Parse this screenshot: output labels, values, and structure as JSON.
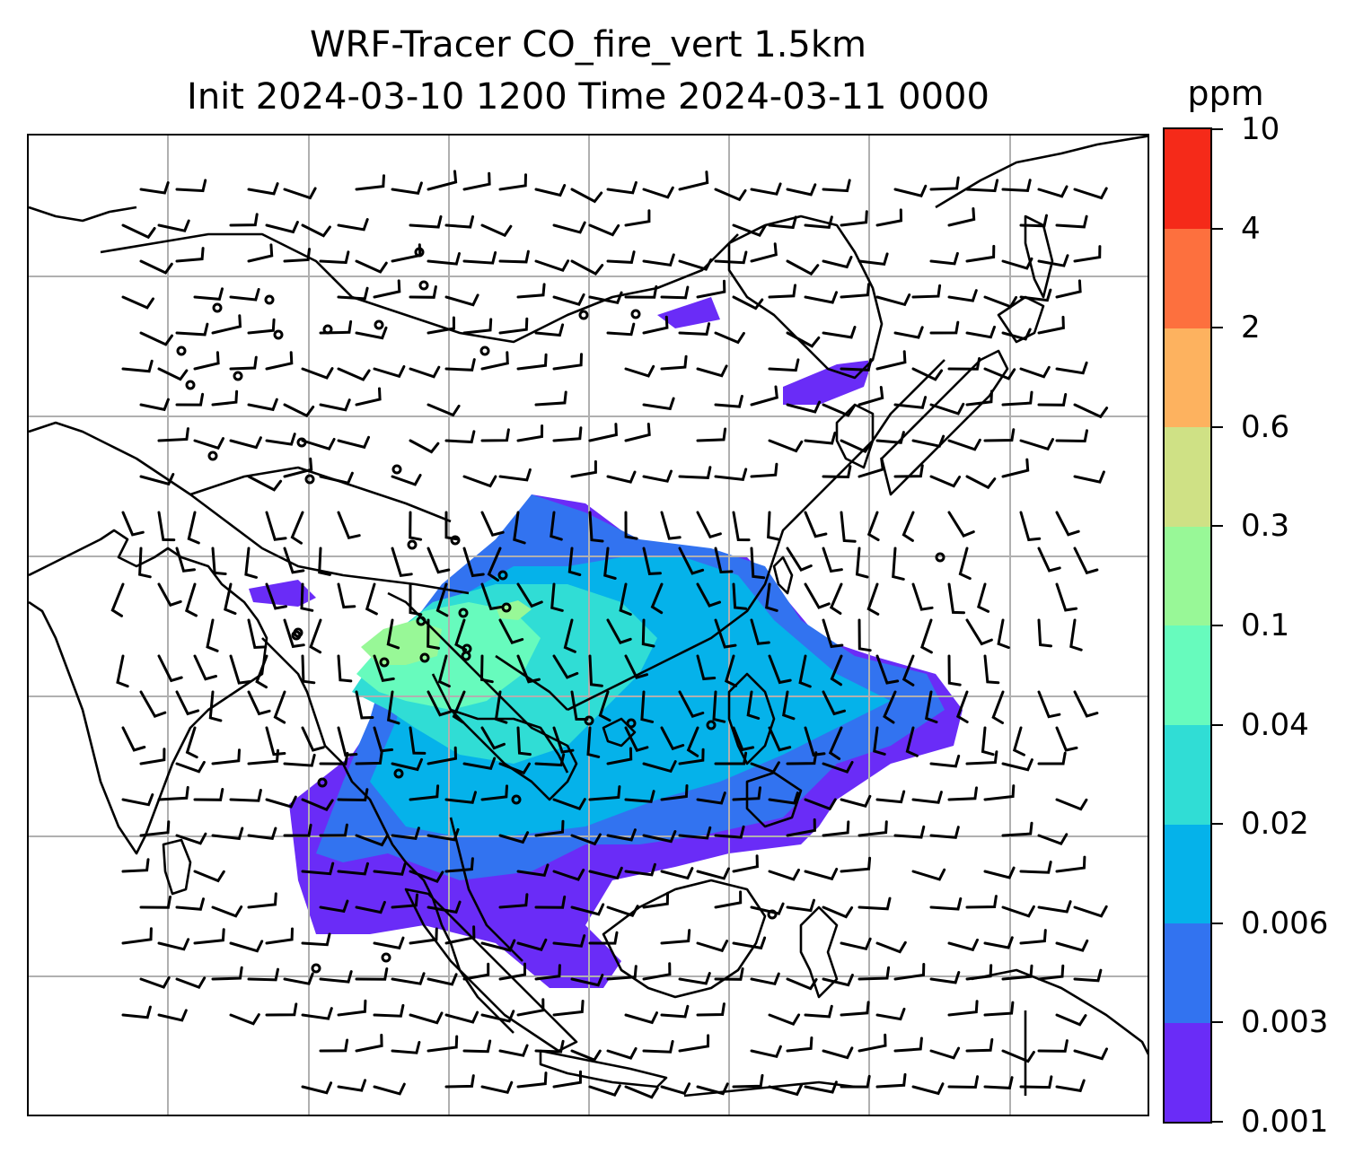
{
  "title": {
    "line1": "WRF-Tracer CO_fire_vert 1.5km",
    "line2": "Init 2024-03-10 1200 Time 2024-03-11 0000"
  },
  "colorbar": {
    "unit": "ppm",
    "ticks": [
      "0.001",
      "0.003",
      "0.006",
      "0.02",
      "0.04",
      "0.1",
      "0.3",
      "0.6",
      "2",
      "4",
      "10"
    ],
    "colors": [
      "#6a2cf7",
      "#3273f0",
      "#05b2ea",
      "#30ddd5",
      "#67fbbd",
      "#98f897",
      "#cfe185",
      "#fdb25f",
      "#fd703e",
      "#f52a19"
    ]
  },
  "map": {
    "gridlines": true,
    "colors": {
      "coast": "#000000",
      "grid": "#b0b0b0",
      "barb": "#000000"
    }
  }
}
